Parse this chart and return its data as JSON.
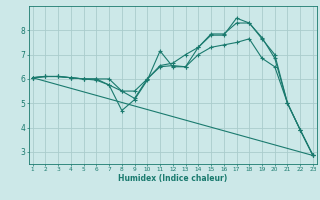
{
  "xlabel": "Humidex (Indice chaleur)",
  "bg_color": "#cce8e8",
  "grid_color": "#aacccc",
  "line_color": "#1a7a6e",
  "xlim": [
    0.7,
    23.3
  ],
  "ylim": [
    2.5,
    9.0
  ],
  "yticks": [
    3,
    4,
    5,
    6,
    7,
    8
  ],
  "xticks": [
    1,
    2,
    3,
    4,
    5,
    6,
    7,
    8,
    9,
    10,
    11,
    12,
    13,
    14,
    15,
    16,
    17,
    18,
    19,
    20,
    21,
    22,
    23
  ],
  "lines": [
    {
      "x": [
        1,
        23
      ],
      "y": [
        6.05,
        2.85
      ]
    },
    {
      "x": [
        1,
        2,
        3,
        4,
        5,
        6,
        7,
        8,
        9,
        10,
        11,
        12,
        13,
        14,
        15,
        16,
        17,
        18,
        19,
        20,
        21,
        22,
        23
      ],
      "y": [
        6.05,
        6.1,
        6.1,
        6.05,
        6.0,
        6.0,
        5.75,
        4.7,
        5.15,
        5.95,
        7.15,
        6.5,
        6.5,
        7.3,
        7.8,
        7.8,
        8.5,
        8.3,
        7.7,
        6.85,
        5.0,
        3.9,
        2.85
      ]
    },
    {
      "x": [
        1,
        2,
        3,
        4,
        5,
        6,
        7,
        8,
        9,
        10,
        11,
        12,
        13,
        14,
        15,
        16,
        17,
        18,
        19,
        20,
        21,
        22,
        23
      ],
      "y": [
        6.05,
        6.1,
        6.1,
        6.05,
        6.0,
        5.95,
        5.75,
        5.5,
        5.5,
        6.0,
        6.55,
        6.65,
        7.0,
        7.3,
        7.85,
        7.85,
        8.3,
        8.3,
        7.65,
        7.0,
        5.0,
        3.9,
        2.85
      ]
    },
    {
      "x": [
        1,
        2,
        3,
        4,
        5,
        6,
        7,
        8,
        9,
        10,
        11,
        12,
        13,
        14,
        15,
        16,
        17,
        18,
        19,
        20,
        21,
        22,
        23
      ],
      "y": [
        6.05,
        6.1,
        6.1,
        6.05,
        6.0,
        6.0,
        6.0,
        5.5,
        5.2,
        6.0,
        6.5,
        6.55,
        6.5,
        7.0,
        7.3,
        7.4,
        7.5,
        7.65,
        6.85,
        6.5,
        5.0,
        3.9,
        2.85
      ]
    }
  ]
}
